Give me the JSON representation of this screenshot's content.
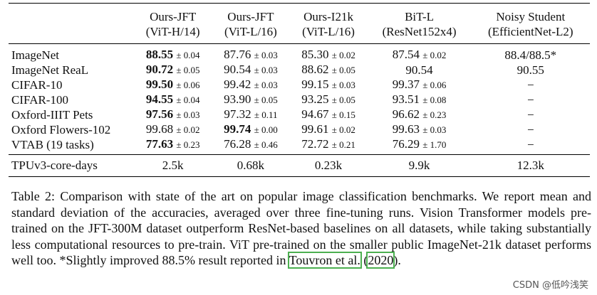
{
  "table": {
    "columns": [
      {
        "line1": "Ours-JFT",
        "line2": "(ViT-H/14)"
      },
      {
        "line1": "Ours-JFT",
        "line2": "(ViT-L/16)"
      },
      {
        "line1": "Ours-I21k",
        "line2": "(ViT-L/16)"
      },
      {
        "line1": "BiT-L",
        "line2": "(ResNet152x4)"
      },
      {
        "line1": "Noisy Student",
        "line2": "(EfficientNet-L2)"
      }
    ],
    "rows": [
      {
        "label": "ImageNet",
        "cells": [
          {
            "v": "88.55",
            "s": "± 0.04",
            "b": true
          },
          {
            "v": "87.76",
            "s": "± 0.03"
          },
          {
            "v": "85.30",
            "s": "± 0.02"
          },
          {
            "v": "87.54",
            "s": "± 0.02"
          },
          {
            "v": "88.4/88.5*",
            "s": ""
          }
        ]
      },
      {
        "label": "ImageNet ReaL",
        "cells": [
          {
            "v": "90.72",
            "s": "± 0.05",
            "b": true
          },
          {
            "v": "90.54",
            "s": "± 0.03"
          },
          {
            "v": "88.62",
            "s": "± 0.05"
          },
          {
            "v": "90.54",
            "s": ""
          },
          {
            "v": "90.55",
            "s": ""
          }
        ]
      },
      {
        "label": "CIFAR-10",
        "cells": [
          {
            "v": "99.50",
            "s": "± 0.06",
            "b": true
          },
          {
            "v": "99.42",
            "s": "± 0.03"
          },
          {
            "v": "99.15",
            "s": "± 0.03"
          },
          {
            "v": "99.37",
            "s": "± 0.06"
          },
          {
            "v": "−",
            "s": ""
          }
        ]
      },
      {
        "label": "CIFAR-100",
        "cells": [
          {
            "v": "94.55",
            "s": "± 0.04",
            "b": true
          },
          {
            "v": "93.90",
            "s": "± 0.05"
          },
          {
            "v": "93.25",
            "s": "± 0.05"
          },
          {
            "v": "93.51",
            "s": "± 0.08"
          },
          {
            "v": "−",
            "s": ""
          }
        ]
      },
      {
        "label": "Oxford-IIIT Pets",
        "cells": [
          {
            "v": "97.56",
            "s": "± 0.03",
            "b": true
          },
          {
            "v": "97.32",
            "s": "± 0.11"
          },
          {
            "v": "94.67",
            "s": "± 0.15"
          },
          {
            "v": "96.62",
            "s": "± 0.23"
          },
          {
            "v": "−",
            "s": ""
          }
        ]
      },
      {
        "label": "Oxford Flowers-102",
        "cells": [
          {
            "v": "99.68",
            "s": "± 0.02"
          },
          {
            "v": "99.74",
            "s": "± 0.00",
            "b": true
          },
          {
            "v": "99.61",
            "s": "± 0.02"
          },
          {
            "v": "99.63",
            "s": "± 0.03"
          },
          {
            "v": "−",
            "s": ""
          }
        ]
      },
      {
        "label": "VTAB (19 tasks)",
        "cells": [
          {
            "v": "77.63",
            "s": "± 0.23",
            "b": true
          },
          {
            "v": "76.28",
            "s": "± 0.46"
          },
          {
            "v": "72.72",
            "s": "± 0.21"
          },
          {
            "v": "76.29",
            "s": "± 1.70"
          },
          {
            "v": "−",
            "s": ""
          }
        ]
      }
    ],
    "footer": {
      "label": "TPUv3-core-days",
      "cells": [
        "2.5k",
        "0.68k",
        "0.23k",
        "9.9k",
        "12.3k"
      ]
    }
  },
  "caption": {
    "text_before_cite": "Table 2:   Comparison with state of the art on popular image classification benchmarks.  We report mean and standard deviation of the accuracies, averaged over three fine-tuning runs.  Vision Transformer models pre-trained on the JFT-300M dataset outperform ResNet-based baselines on all datasets, while taking substantially less computational resources to pre-train. ViT pre-trained on the smaller public ImageNet-21k dataset performs well too.  *Slightly improved 88.5% result reported in ",
    "cite_authors": "Touvron et al.",
    "cite_middle": " (",
    "cite_year": "2020",
    "text_after_cite": ")."
  },
  "watermark": "CSDN @低吟浅笑"
}
